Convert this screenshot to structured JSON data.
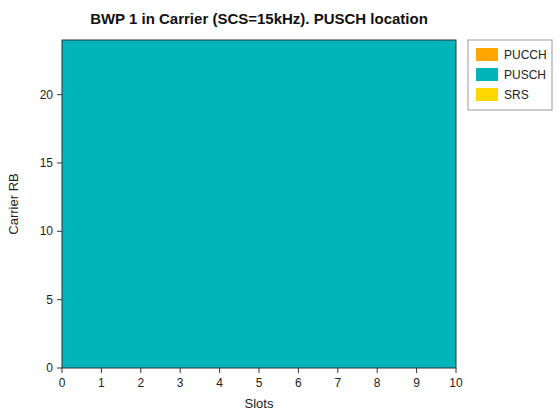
{
  "chart_data": {
    "type": "rect",
    "title": "BWP 1 in Carrier (SCS=15kHz). PUSCH location",
    "x_label": "Slots",
    "y_label": "Carrier RB",
    "xlim": [
      0,
      10
    ],
    "ylim": [
      0,
      24
    ],
    "xticks": [
      0,
      1,
      2,
      3,
      4,
      5,
      6,
      7,
      8,
      9,
      10
    ],
    "yticks": [
      0,
      5,
      10,
      15,
      20
    ],
    "grid": false,
    "legend": "upper right",
    "series": [
      {
        "name": "PUCCH",
        "color": "#FFA500"
      },
      {
        "name": "PUSCH",
        "color": "#00B4BC",
        "x": [
          0,
          10
        ],
        "y": [
          0,
          24
        ]
      },
      {
        "name": "SRS",
        "color": "#FFD700"
      }
    ]
  }
}
